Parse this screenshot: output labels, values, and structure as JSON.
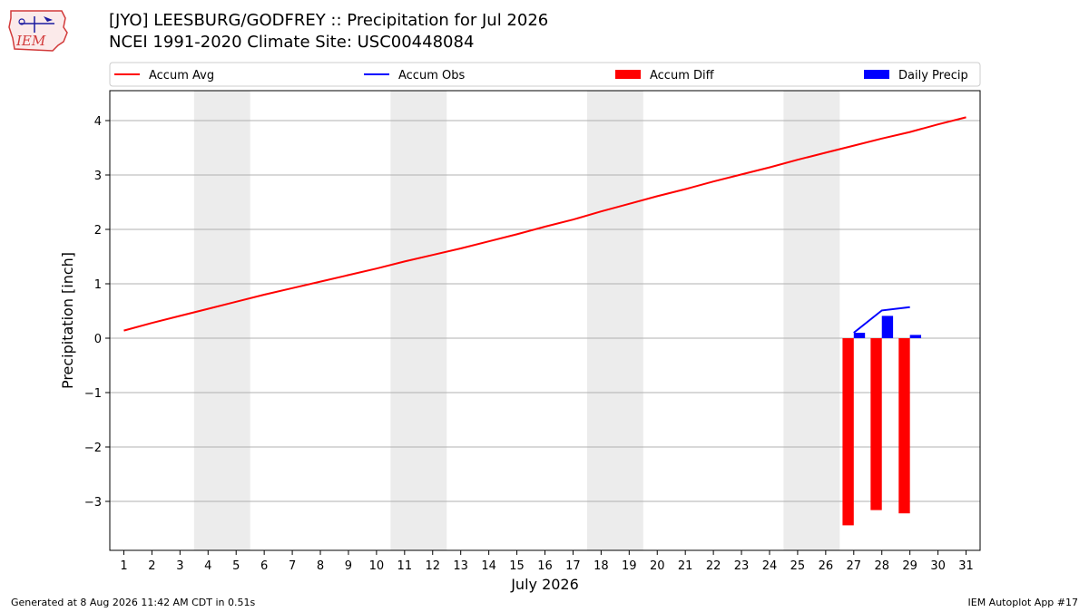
{
  "page": {
    "title_line1": "[JYO] LEESBURG/GODFREY :: Precipitation for Jul 2026",
    "title_line2": "NCEI 1991-2020 Climate Site: USC00448084",
    "footer_left": "Generated at 8 Aug 2026 11:42 AM CDT in 0.51s",
    "footer_right": "IEM Autoplot App #17",
    "logo_text": "IEM"
  },
  "chart_data": {
    "type": "bar",
    "xlabel": "July 2026",
    "ylabel": "Precipitation [inch]",
    "x": [
      1,
      2,
      3,
      4,
      5,
      6,
      7,
      8,
      9,
      10,
      11,
      12,
      13,
      14,
      15,
      16,
      17,
      18,
      19,
      20,
      21,
      22,
      23,
      24,
      25,
      26,
      27,
      28,
      29,
      30,
      31
    ],
    "xlim": [
      0.5,
      31.5
    ],
    "ylim": [
      -3.9,
      4.55
    ],
    "yticks": [
      -3,
      -2,
      -1,
      0,
      1,
      2,
      3,
      4
    ],
    "ytick_labels": [
      "−3",
      "−2",
      "−1",
      "0",
      "1",
      "2",
      "3",
      "4"
    ],
    "grid": "horizontal",
    "weekend_shading": [
      [
        3.5,
        5.5
      ],
      [
        10.5,
        12.5
      ],
      [
        17.5,
        19.5
      ],
      [
        24.5,
        26.5
      ]
    ],
    "legend_position": "top",
    "series": [
      {
        "name": "Accum Avg",
        "kind": "line",
        "color": "#ff0000",
        "x": [
          1,
          2,
          3,
          4,
          5,
          6,
          7,
          8,
          9,
          10,
          11,
          12,
          13,
          14,
          15,
          16,
          17,
          18,
          19,
          20,
          21,
          22,
          23,
          24,
          25,
          26,
          27,
          28,
          29,
          30,
          31
        ],
        "values": [
          0.14,
          0.28,
          0.41,
          0.54,
          0.67,
          0.8,
          0.92,
          1.04,
          1.16,
          1.28,
          1.41,
          1.53,
          1.65,
          1.78,
          1.91,
          2.05,
          2.18,
          2.33,
          2.47,
          2.61,
          2.74,
          2.88,
          3.01,
          3.14,
          3.28,
          3.41,
          3.54,
          3.67,
          3.79,
          3.93,
          4.06
        ]
      },
      {
        "name": "Accum Obs",
        "kind": "line",
        "color": "#0000ff",
        "x": [
          27,
          28,
          29
        ],
        "values": [
          0.1,
          0.51,
          0.57
        ]
      },
      {
        "name": "Accum Diff",
        "kind": "bar",
        "color": "#ff0000",
        "x": [
          27,
          28,
          29
        ],
        "values": [
          -3.44,
          -3.16,
          -3.22
        ]
      },
      {
        "name": "Daily Precip",
        "kind": "bar",
        "color": "#0000ff",
        "x": [
          27,
          28,
          29
        ],
        "values": [
          0.1,
          0.41,
          0.06
        ]
      }
    ]
  }
}
